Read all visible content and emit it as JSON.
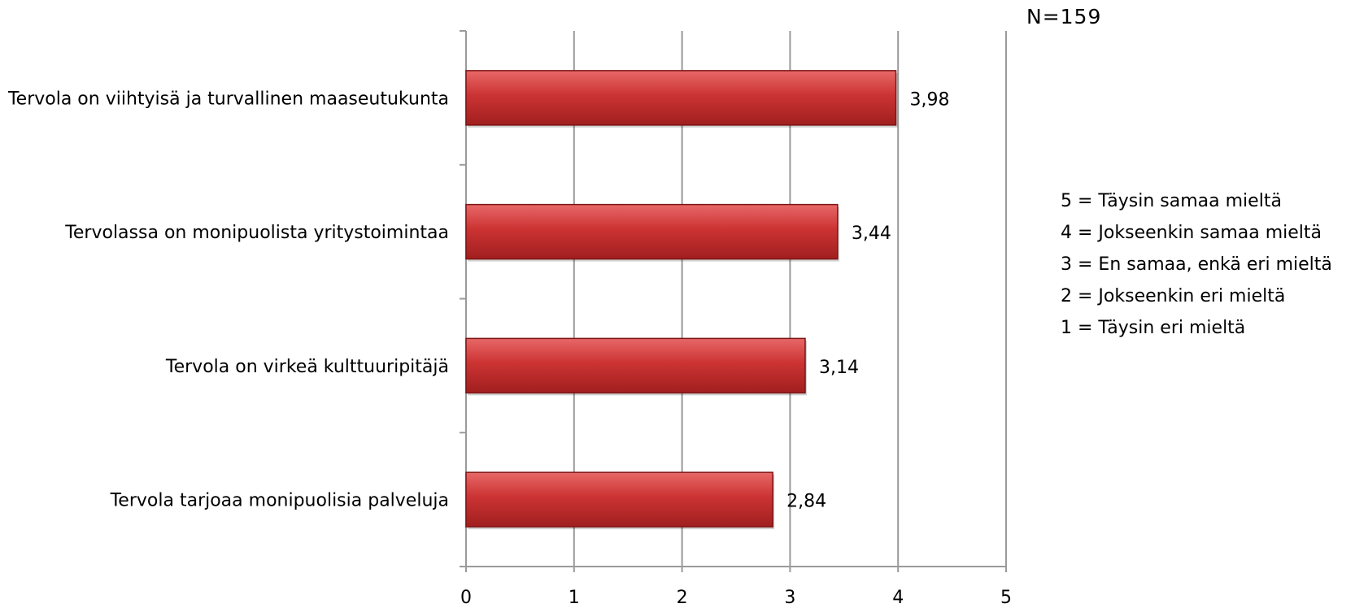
{
  "chart_data": {
    "type": "bar",
    "orientation": "horizontal",
    "title": "",
    "xlabel": "",
    "ylabel": "",
    "categories": [
      "Tervola on viihtyisä ja turvallinen maaseutukunta",
      "Tervolassa on monipuolista yritystoimintaa",
      "Tervola on virkeä kulttuuripitäjä",
      "Tervola tarjoaa monipuolisia palveluja"
    ],
    "values": [
      3.98,
      3.44,
      3.14,
      2.84
    ],
    "data_labels": [
      "3,98",
      "3,44",
      "3,14",
      "2,84"
    ],
    "xlim": [
      0,
      5
    ],
    "x_ticks": [
      "0",
      "1",
      "2",
      "3",
      "4",
      "5"
    ],
    "grid": true,
    "bar_color": "#cc3333",
    "annotation_n": "N=159",
    "legend_text": [
      "5 = Täysin samaa mieltä",
      "4 = Jokseenkin samaa mieltä",
      "3 = En samaa, enkä eri mieltä",
      "2 = Jokseenkin eri mieltä",
      "1 = Täysin eri mieltä"
    ]
  }
}
